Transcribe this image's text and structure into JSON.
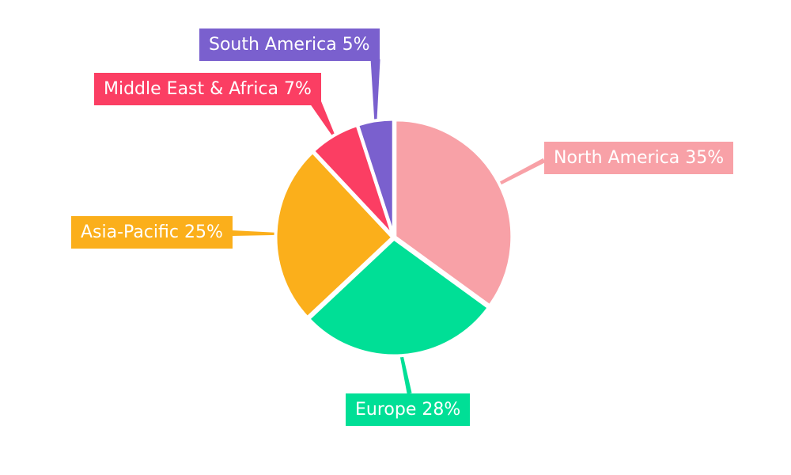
{
  "chart_data": {
    "type": "pie",
    "title": "",
    "unit": "%",
    "start_angle": "top",
    "direction": "clockwise",
    "legend_position": "none",
    "background": "#FFFFFF",
    "label_style": "colored callout boxes with tapered leader lines, white text",
    "text_color_on_labels": "#FFFFFF",
    "gap_color": "#FFFFFF",
    "slices": [
      {
        "label": "North America",
        "value": 35,
        "pct_text": "35%",
        "color": "#F8A1A7",
        "label_text": "North America 35%"
      },
      {
        "label": "Europe",
        "value": 28,
        "pct_text": "28%",
        "color": "#00DF96",
        "label_text": "Europe 28%"
      },
      {
        "label": "Asia-Pacific",
        "value": 25,
        "pct_text": "25%",
        "color": "#FBAF1B",
        "label_text": "Asia-Pacific 25%"
      },
      {
        "label": "Middle East & Africa",
        "value": 7,
        "pct_text": "7%",
        "color": "#FB3E63",
        "label_text": "Middle East & Africa 7%"
      },
      {
        "label": "South America",
        "value": 5,
        "pct_text": "5%",
        "color": "#7A60CE",
        "label_text": "South America 5%"
      }
    ]
  }
}
